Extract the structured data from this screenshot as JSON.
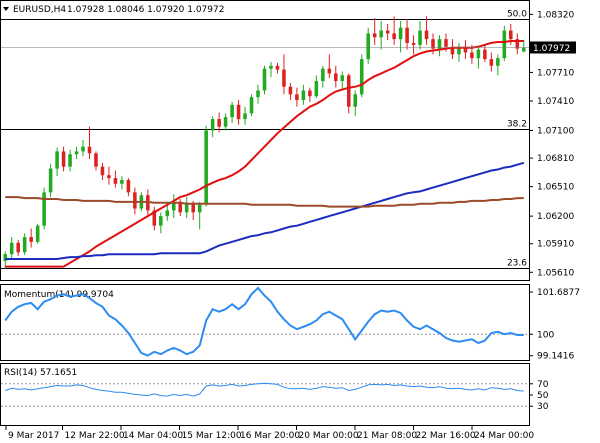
{
  "header": {
    "symbol_label": "EURUSD,H4",
    "ohlc_label": "1.07928 1.08046 1.07920 1.07972"
  },
  "colors": {
    "bull_candle": "#22aa22",
    "bear_candle": "#dd2222",
    "ma_fast": "#e01010",
    "ma_mid": "#1a2cc0",
    "ma_slow": "#9b4a2a",
    "indicator": "#2d8cf0",
    "gridline": "#000000",
    "price_tag_bg": "#000000"
  },
  "chart_data": [
    {
      "type": "candlestick",
      "title": "EURUSD,H4",
      "ylim": [
        1.0555,
        1.0845
      ],
      "y_ticks": [
        "1.08320",
        "1.08000",
        "1.07710",
        "1.07410",
        "1.07100",
        "1.06810",
        "1.06510",
        "1.06200",
        "1.05910",
        "1.05610"
      ],
      "x_ticks": [
        "9 Mar 2017",
        "12 Mar 22:00",
        "14 Mar 04:00",
        "15 Mar 12:00",
        "16 Mar 20:00",
        "20 Mar 00:00",
        "21 Mar 08:00",
        "22 Mar 16:00",
        "24 Mar 00:00"
      ],
      "current_price": "1.07972",
      "fib_levels": [
        {
          "label": "50.0",
          "value": 1.0827
        },
        {
          "label": "38.2",
          "value": 1.0712
        },
        {
          "label": "23.6",
          "value": 1.0566
        }
      ],
      "candles": [
        [
          1.0573,
          1.0583,
          1.0565,
          1.058
        ],
        [
          1.058,
          1.0598,
          1.0575,
          1.0592
        ],
        [
          1.0592,
          1.0595,
          1.0578,
          1.0582
        ],
        [
          1.0582,
          1.0602,
          1.0579,
          1.0598
        ],
        [
          1.0598,
          1.0607,
          1.0587,
          1.0593
        ],
        [
          1.0593,
          1.0612,
          1.0591,
          1.061
        ],
        [
          1.061,
          1.065,
          1.0606,
          1.0645
        ],
        [
          1.0645,
          1.0675,
          1.064,
          1.067
        ],
        [
          1.067,
          1.0692,
          1.0662,
          1.0688
        ],
        [
          1.0688,
          1.0693,
          1.0667,
          1.0672
        ],
        [
          1.0672,
          1.069,
          1.0667,
          1.0685
        ],
        [
          1.0685,
          1.0693,
          1.068,
          1.0688
        ],
        [
          1.0688,
          1.07,
          1.0683,
          1.0693
        ],
        [
          1.0693,
          1.0714,
          1.068,
          1.0686
        ],
        [
          1.0686,
          1.0688,
          1.0668,
          1.0672
        ],
        [
          1.0672,
          1.0676,
          1.0658,
          1.0663
        ],
        [
          1.0663,
          1.0672,
          1.0653,
          1.066
        ],
        [
          1.066,
          1.0668,
          1.065,
          1.0654
        ],
        [
          1.0654,
          1.0662,
          1.0648,
          1.0658
        ],
        [
          1.0658,
          1.066,
          1.0641,
          1.0645
        ],
        [
          1.0645,
          1.065,
          1.0622,
          1.0628
        ],
        [
          1.0628,
          1.0645,
          1.0625,
          1.0642
        ],
        [
          1.0642,
          1.0648,
          1.062,
          1.0626
        ],
        [
          1.0626,
          1.063,
          1.0605,
          1.061
        ],
        [
          1.061,
          1.0624,
          1.0602,
          1.062
        ],
        [
          1.062,
          1.0631,
          1.0615,
          1.0626
        ],
        [
          1.0626,
          1.0643,
          1.0618,
          1.0635
        ],
        [
          1.0635,
          1.0638,
          1.062,
          1.0624
        ],
        [
          1.0624,
          1.064,
          1.0618,
          1.0634
        ],
        [
          1.0634,
          1.0636,
          1.0616,
          1.0624
        ],
        [
          1.0624,
          1.0635,
          1.0606,
          1.0632
        ],
        [
          1.0632,
          1.0715,
          1.063,
          1.071
        ],
        [
          1.071,
          1.0725,
          1.0703,
          1.0722
        ],
        [
          1.0722,
          1.0729,
          1.0708,
          1.0714
        ],
        [
          1.0714,
          1.0728,
          1.071,
          1.0724
        ],
        [
          1.0724,
          1.074,
          1.0718,
          1.0737
        ],
        [
          1.0737,
          1.0742,
          1.0716,
          1.0722
        ],
        [
          1.0722,
          1.0735,
          1.0716,
          1.0728
        ],
        [
          1.0728,
          1.0748,
          1.0725,
          1.0745
        ],
        [
          1.0745,
          1.0758,
          1.0738,
          1.0752
        ],
        [
          1.0752,
          1.0778,
          1.0748,
          1.0775
        ],
        [
          1.0775,
          1.0782,
          1.0766,
          1.0778
        ],
        [
          1.0778,
          1.0781,
          1.077,
          1.0774
        ],
        [
          1.0774,
          1.079,
          1.0748,
          1.0756
        ],
        [
          1.0756,
          1.076,
          1.0742,
          1.0748
        ],
        [
          1.0748,
          1.0755,
          1.0735,
          1.0742
        ],
        [
          1.0742,
          1.0758,
          1.0737,
          1.0752
        ],
        [
          1.0752,
          1.0755,
          1.074,
          1.0746
        ],
        [
          1.0746,
          1.0768,
          1.0744,
          1.0762
        ],
        [
          1.0762,
          1.0778,
          1.0755,
          1.0775
        ],
        [
          1.0775,
          1.079,
          1.0765,
          1.077
        ],
        [
          1.077,
          1.0778,
          1.0755,
          1.0762
        ],
        [
          1.0762,
          1.0772,
          1.0752,
          1.0768
        ],
        [
          1.0768,
          1.077,
          1.0728,
          1.0735
        ],
        [
          1.0735,
          1.0752,
          1.0725,
          1.0748
        ],
        [
          1.0748,
          1.079,
          1.0745,
          1.0785
        ],
        [
          1.0785,
          1.0818,
          1.078,
          1.0812
        ],
        [
          1.0812,
          1.0828,
          1.08,
          1.0808
        ],
        [
          1.0808,
          1.0825,
          1.0795,
          1.0815
        ],
        [
          1.0815,
          1.0822,
          1.0805,
          1.0812
        ],
        [
          1.0812,
          1.083,
          1.08,
          1.0806
        ],
        [
          1.0806,
          1.0825,
          1.0792,
          1.0818
        ],
        [
          1.0818,
          1.0827,
          1.0795,
          1.0802
        ],
        [
          1.0802,
          1.081,
          1.079,
          1.08
        ],
        [
          1.08,
          1.0825,
          1.0795,
          1.0815
        ],
        [
          1.0815,
          1.083,
          1.08,
          1.0806
        ],
        [
          1.0806,
          1.0812,
          1.079,
          1.0796
        ],
        [
          1.0796,
          1.081,
          1.0788,
          1.0806
        ],
        [
          1.0806,
          1.0812,
          1.0793,
          1.0798
        ],
        [
          1.0798,
          1.0806,
          1.0785,
          1.079
        ],
        [
          1.079,
          1.0802,
          1.0782,
          1.0798
        ],
        [
          1.0798,
          1.0805,
          1.0785,
          1.0792
        ],
        [
          1.0792,
          1.08,
          1.078,
          1.0786
        ],
        [
          1.0786,
          1.0798,
          1.0775,
          1.0795
        ],
        [
          1.0795,
          1.08,
          1.0782,
          1.0785
        ],
        [
          1.0785,
          1.0792,
          1.0772,
          1.0778
        ],
        [
          1.0778,
          1.079,
          1.0768,
          1.0786
        ],
        [
          1.0786,
          1.082,
          1.0783,
          1.0815
        ],
        [
          1.0815,
          1.0822,
          1.08,
          1.0806
        ],
        [
          1.0806,
          1.0812,
          1.079,
          1.0796
        ],
        [
          1.0793,
          1.0805,
          1.0792,
          1.0797
        ]
      ],
      "series": [
        {
          "name": "MA fast",
          "values": [
            1.0567,
            1.0567,
            1.0567,
            1.0567,
            1.0567,
            1.0567,
            1.0567,
            1.0567,
            1.0567,
            1.0567,
            1.0571,
            1.0575,
            1.0579,
            1.0583,
            1.0588,
            1.0592,
            1.0596,
            1.06,
            1.0604,
            1.0608,
            1.0612,
            1.0616,
            1.062,
            1.0624,
            1.0628,
            1.0632,
            1.0636,
            1.064,
            1.0642,
            1.0645,
            1.0648,
            1.0652,
            1.0655,
            1.0658,
            1.066,
            1.0663,
            1.0667,
            1.0672,
            1.0679,
            1.0686,
            1.0693,
            1.07,
            1.0707,
            1.0713,
            1.0719,
            1.0725,
            1.073,
            1.0735,
            1.0738,
            1.0742,
            1.0747,
            1.0751,
            1.0753,
            1.0755,
            1.0756,
            1.0758,
            1.0763,
            1.0767,
            1.077,
            1.0773,
            1.0776,
            1.078,
            1.0784,
            1.0788,
            1.0791,
            1.0793,
            1.0794,
            1.0795,
            1.0796,
            1.0797,
            1.0797,
            1.0797,
            1.0797,
            1.0798,
            1.08,
            1.0802,
            1.0803,
            1.0803,
            1.0804,
            1.0804,
            1.0804
          ]
        },
        {
          "name": "MA mid",
          "values": [
            1.0575,
            1.0575,
            1.0575,
            1.0575,
            1.0575,
            1.0575,
            1.0575,
            1.0575,
            1.0575,
            1.0576,
            1.0577,
            1.0577,
            1.0578,
            1.0578,
            1.0579,
            1.0579,
            1.058,
            1.058,
            1.058,
            1.058,
            1.058,
            1.058,
            1.058,
            1.058,
            1.0581,
            1.0581,
            1.0581,
            1.0581,
            1.0581,
            1.0581,
            1.0581,
            1.0583,
            1.0586,
            1.0589,
            1.0591,
            1.0593,
            1.0595,
            1.0597,
            1.0599,
            1.06,
            1.0602,
            1.0603,
            1.0605,
            1.0607,
            1.0609,
            1.061,
            1.0612,
            1.0614,
            1.0616,
            1.0618,
            1.062,
            1.0622,
            1.0624,
            1.0626,
            1.0628,
            1.063,
            1.0632,
            1.0634,
            1.0636,
            1.0638,
            1.064,
            1.0642,
            1.0644,
            1.0645,
            1.0646,
            1.0648,
            1.065,
            1.0652,
            1.0654,
            1.0656,
            1.0658,
            1.066,
            1.0662,
            1.0664,
            1.0666,
            1.0668,
            1.0669,
            1.0671,
            1.0672,
            1.0674,
            1.0676
          ]
        },
        {
          "name": "MA slow",
          "values": [
            1.064,
            1.064,
            1.064,
            1.0639,
            1.0639,
            1.0639,
            1.0638,
            1.0638,
            1.0638,
            1.0637,
            1.0637,
            1.0637,
            1.0636,
            1.0636,
            1.0636,
            1.0636,
            1.0636,
            1.0635,
            1.0635,
            1.0635,
            1.0635,
            1.0635,
            1.0635,
            1.0634,
            1.0634,
            1.0634,
            1.0634,
            1.0634,
            1.0633,
            1.0633,
            1.0633,
            1.0633,
            1.0633,
            1.0633,
            1.0633,
            1.0633,
            1.0633,
            1.0633,
            1.0632,
            1.0632,
            1.0632,
            1.0632,
            1.0632,
            1.0632,
            1.0632,
            1.0631,
            1.0631,
            1.0631,
            1.0631,
            1.0631,
            1.063,
            1.063,
            1.063,
            1.063,
            1.063,
            1.063,
            1.063,
            1.0631,
            1.0631,
            1.0631,
            1.0631,
            1.0632,
            1.0632,
            1.0632,
            1.0633,
            1.0633,
            1.0633,
            1.0634,
            1.0634,
            1.0634,
            1.0635,
            1.0635,
            1.0636,
            1.0636,
            1.0636,
            1.0637,
            1.0637,
            1.0638,
            1.0638,
            1.0639,
            1.0639
          ]
        }
      ]
    },
    {
      "type": "line",
      "title": "Momentum(14) 99.9704",
      "ylim": [
        99.05,
        101.85
      ],
      "y_ticks": [
        "101.6877",
        "100",
        "99.1416"
      ],
      "reference_level": 100,
      "values": [
        100.55,
        100.9,
        101.1,
        101.2,
        101.25,
        101.0,
        101.3,
        101.4,
        101.55,
        101.6,
        101.5,
        101.55,
        101.6,
        101.45,
        101.25,
        101.1,
        100.75,
        100.6,
        100.35,
        100.05,
        99.65,
        99.25,
        99.15,
        99.3,
        99.2,
        99.35,
        99.45,
        99.35,
        99.2,
        99.3,
        99.55,
        100.55,
        101.0,
        100.9,
        101.0,
        101.2,
        101.0,
        101.2,
        101.6,
        101.85,
        101.55,
        101.3,
        100.9,
        100.6,
        100.35,
        100.2,
        100.3,
        100.4,
        100.55,
        100.8,
        100.9,
        100.75,
        100.6,
        100.2,
        99.8,
        100.15,
        100.5,
        100.8,
        100.95,
        100.9,
        100.95,
        100.85,
        100.55,
        100.3,
        100.2,
        100.35,
        100.2,
        100.05,
        99.85,
        99.75,
        99.7,
        99.75,
        99.8,
        99.65,
        99.75,
        100.05,
        100.1,
        100.0,
        100.05,
        99.97,
        99.97
      ]
    },
    {
      "type": "line",
      "title": "RSI(14) 57.1651",
      "ylim": [
        0,
        100
      ],
      "y_ticks": [
        "70",
        "50",
        "30"
      ],
      "levels": [
        70,
        30
      ],
      "values": [
        58,
        62,
        60,
        61,
        59,
        61,
        63,
        65,
        67,
        66,
        66,
        68,
        67,
        63,
        60,
        58,
        57,
        55,
        55,
        53,
        51,
        50,
        49,
        52,
        49,
        48,
        51,
        49,
        51,
        48,
        52,
        66,
        68,
        66,
        67,
        69,
        66,
        67,
        69,
        70,
        71,
        70,
        69,
        64,
        61,
        61,
        62,
        60,
        62,
        65,
        64,
        62,
        63,
        58,
        60,
        64,
        68,
        69,
        68,
        69,
        67,
        68,
        66,
        65,
        66,
        64,
        63,
        65,
        62,
        61,
        62,
        60,
        59,
        61,
        59,
        63,
        62,
        60,
        61,
        58,
        57
      ]
    }
  ]
}
